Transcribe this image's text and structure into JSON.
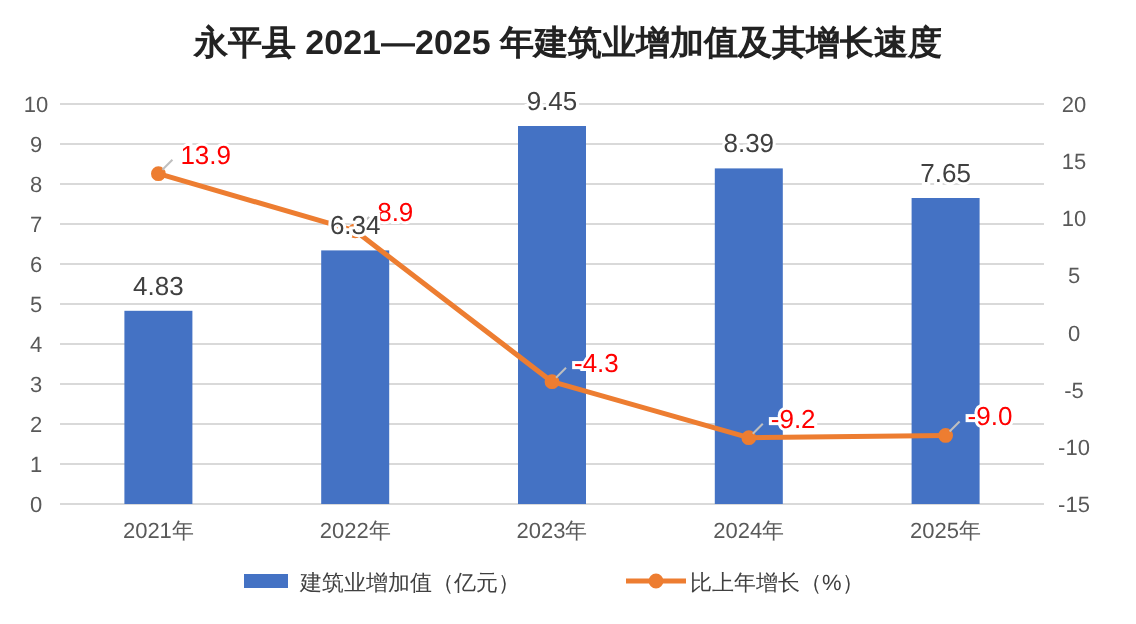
{
  "chart_data": {
    "type": "bar",
    "title": "永平县 2021—2025 年建筑业增加值及其增长速度",
    "categories": [
      "2021年",
      "2022年",
      "2023年",
      "2024年",
      "2025年"
    ],
    "series": [
      {
        "name": "建筑业增加值（亿元）",
        "color": "#4472c4",
        "values": [
          4.83,
          6.34,
          9.45,
          8.39,
          7.65
        ]
      },
      {
        "name": "比上年增长（%）",
        "type": "line",
        "axis": "y2",
        "color": "#ed7d31",
        "marker": "circle",
        "values": [
          13.9,
          8.9,
          -4.3,
          -9.2,
          -9.0
        ],
        "value_labels": [
          "13.9",
          "8.9",
          "-4.3",
          "-9.2",
          "-9.0"
        ]
      }
    ],
    "ylim": [
      0,
      10
    ],
    "yticks": [
      0,
      1,
      2,
      3,
      4,
      5,
      6,
      7,
      8,
      9,
      10
    ],
    "y2lim": [
      -15,
      20
    ],
    "y2ticks": [
      -15,
      -10,
      -5,
      0,
      5,
      10,
      15,
      20
    ],
    "grid": "y",
    "legend": "bottom",
    "data_labels": true
  }
}
